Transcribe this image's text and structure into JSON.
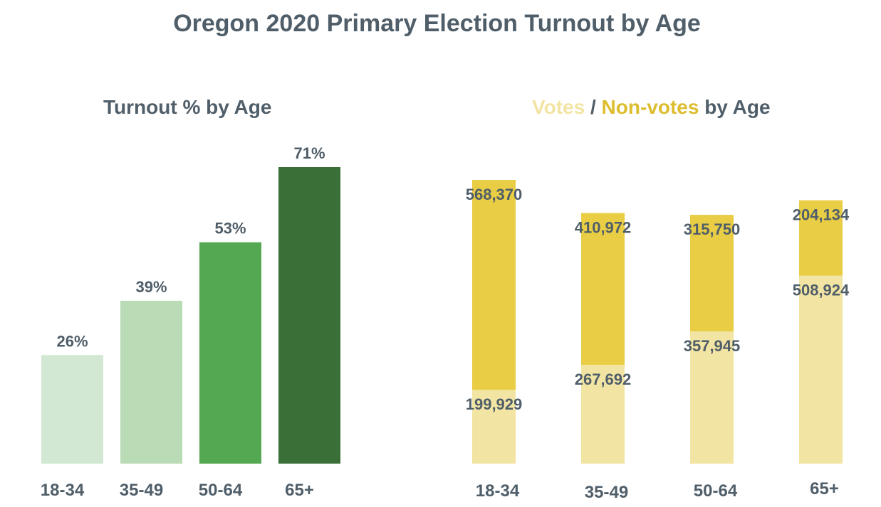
{
  "title": "Oregon 2020 Primary Election Turnout by Age",
  "chart_data": [
    {
      "type": "bar",
      "title": "Turnout % by Age",
      "categories": [
        "18-34",
        "35-49",
        "50-64",
        "65+"
      ],
      "values": [
        26,
        39,
        53,
        71
      ],
      "value_labels": [
        "26%",
        "39%",
        "53%",
        "71%"
      ],
      "ylim": [
        0,
        71
      ],
      "colors": [
        "#d2e8d2",
        "#b9dcb6",
        "#55a852",
        "#3a7038"
      ],
      "grid": false,
      "legend": "none"
    },
    {
      "type": "bar",
      "stacked": true,
      "title_parts": [
        {
          "text": "Votes",
          "color": "#f2e4a2"
        },
        {
          "text": " / ",
          "color": "#4f5e69"
        },
        {
          "text": "Non-votes",
          "color": "#dcbd2e"
        },
        {
          "text": " by Age",
          "color": "#4f5e69"
        }
      ],
      "categories": [
        "18-34",
        "35-49",
        "50-64",
        "65+"
      ],
      "series": [
        {
          "name": "Votes",
          "values": [
            199929,
            267692,
            357945,
            508924
          ],
          "labels": [
            "199,929",
            "267,692",
            "357,945",
            "508,924"
          ],
          "color": "#f2e4a2"
        },
        {
          "name": "Non-votes",
          "values": [
            568370,
            410972,
            315750,
            204134
          ],
          "labels": [
            "568,370",
            "410,972",
            "315,750",
            "204,134"
          ],
          "color": "#e8cd45"
        }
      ],
      "ylim": [
        0,
        768299
      ],
      "grid": false,
      "legend": "in-title"
    }
  ]
}
